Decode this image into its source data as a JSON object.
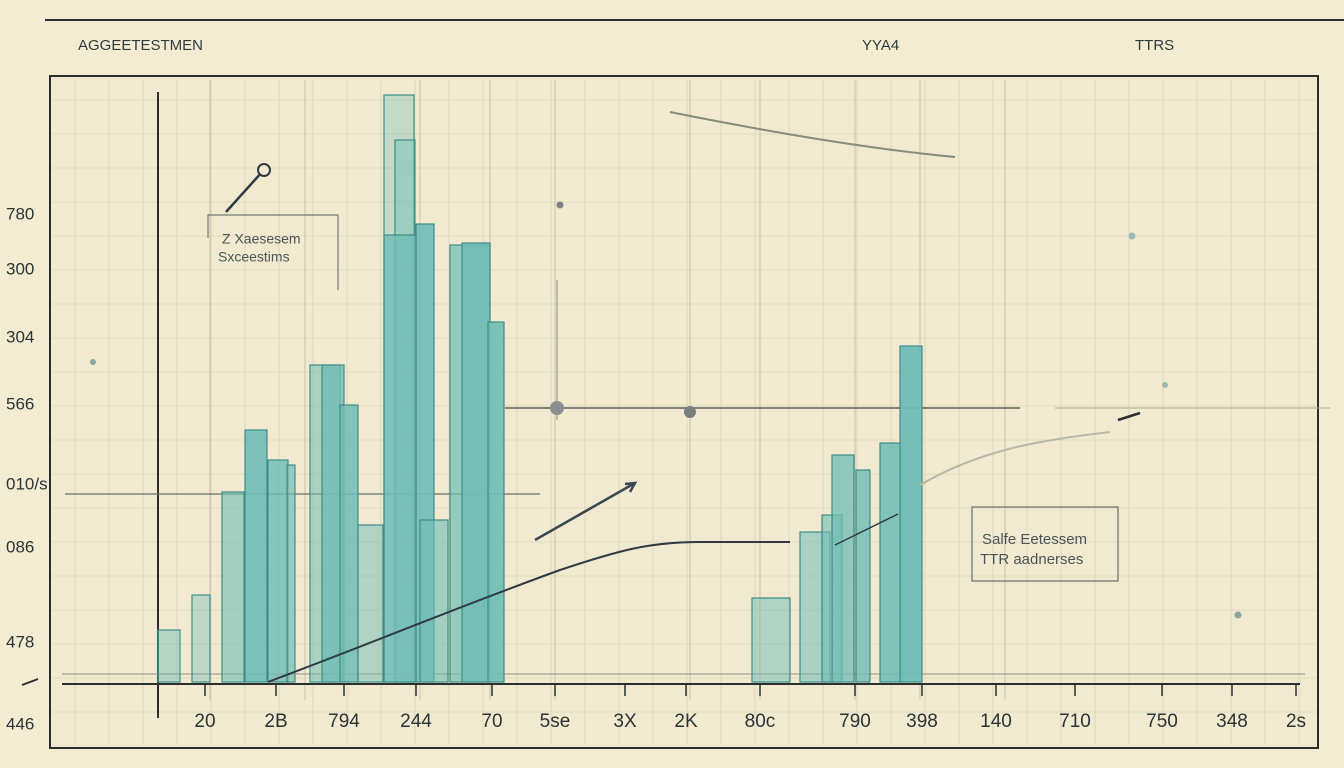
{
  "header": {
    "title": "AGGEETESTMEN",
    "middle": "YYA4",
    "right": "TTRS"
  },
  "y_axis_labels": [
    "780",
    "300",
    "304",
    "566",
    "010/s",
    "086",
    "478",
    "446"
  ],
  "x_axis_labels": [
    "20",
    "2B",
    "794",
    "244",
    "70",
    "5se",
    "3X",
    "2K",
    "80c",
    "790",
    "398",
    "140",
    "710",
    "750",
    "348",
    "2s"
  ],
  "annotations": [
    {
      "lines": [
        "Z Xaesesem",
        "Sxceestims"
      ]
    },
    {
      "lines": [
        "Salfe Eetessem",
        "TTR aadnerses"
      ]
    }
  ]
}
